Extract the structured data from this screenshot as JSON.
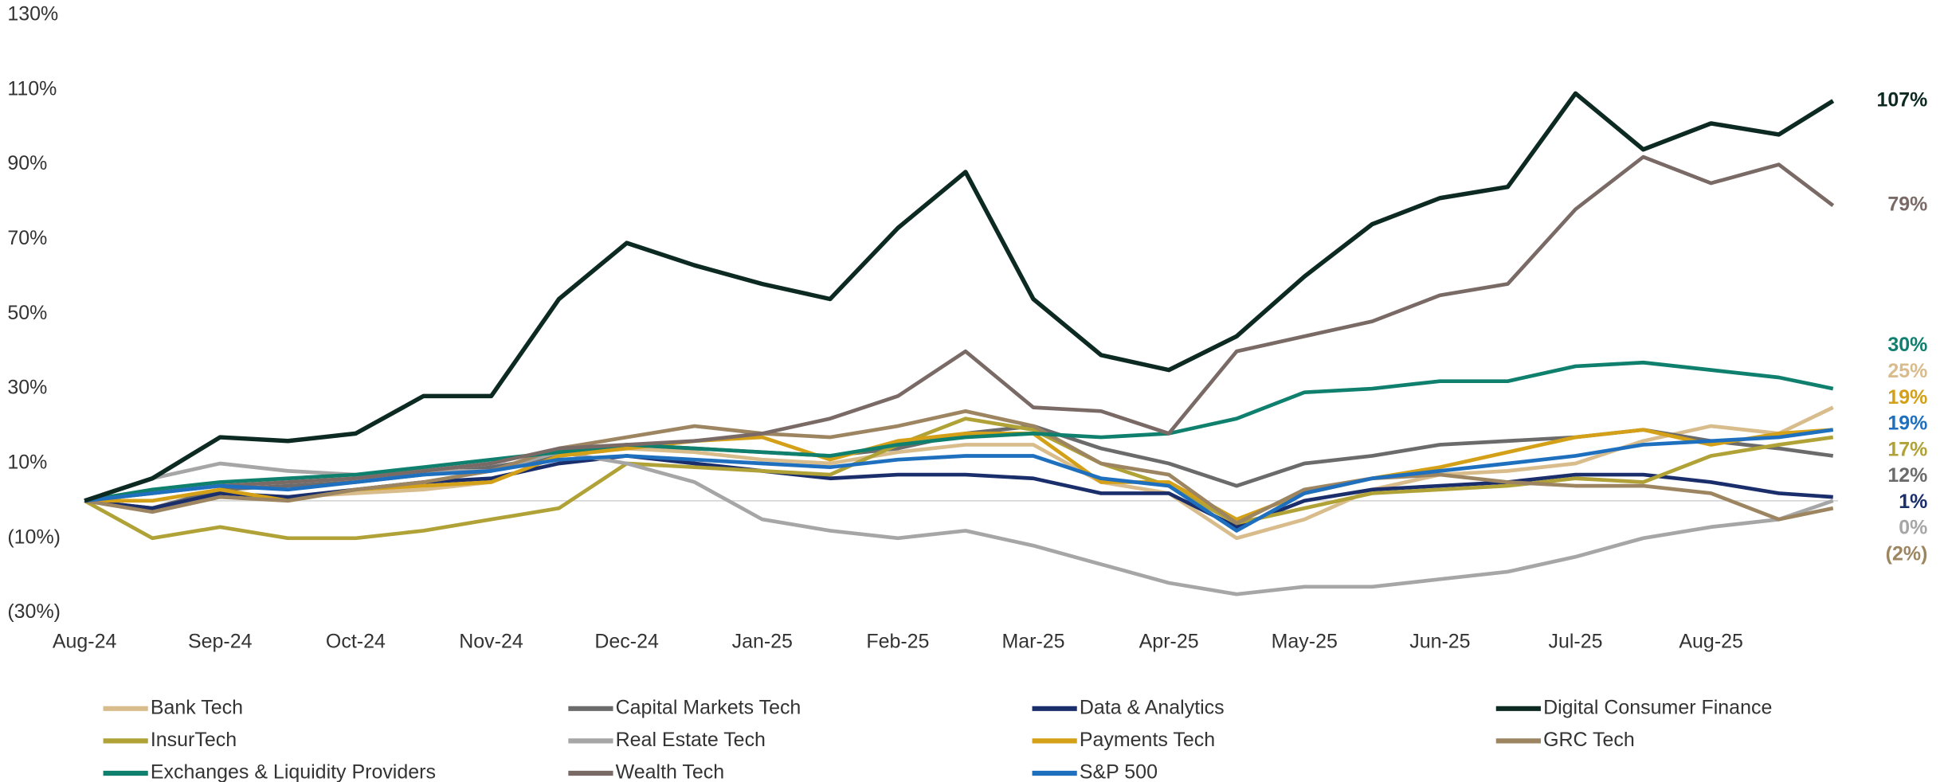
{
  "chart_data": {
    "type": "line",
    "x": [
      0,
      0.5,
      1,
      1.5,
      2,
      2.5,
      3,
      3.5,
      4,
      4.5,
      5,
      5.5,
      6,
      6.5,
      7,
      7.5,
      8,
      8.5,
      9,
      9.5,
      10,
      10.5,
      11,
      11.5,
      12,
      12.5,
      12.9
    ],
    "xlim": [
      0,
      12.9
    ],
    "xticks": [
      {
        "value": 0,
        "label": "Aug-24"
      },
      {
        "value": 1,
        "label": "Sep-24"
      },
      {
        "value": 2,
        "label": "Oct-24"
      },
      {
        "value": 3,
        "label": "Nov-24"
      },
      {
        "value": 4,
        "label": "Dec-24"
      },
      {
        "value": 5,
        "label": "Jan-25"
      },
      {
        "value": 6,
        "label": "Feb-25"
      },
      {
        "value": 7,
        "label": "Mar-25"
      },
      {
        "value": 8,
        "label": "Apr-25"
      },
      {
        "value": 9,
        "label": "May-25"
      },
      {
        "value": 10,
        "label": "Jun-25"
      },
      {
        "value": 11,
        "label": "Jul-25"
      },
      {
        "value": 12,
        "label": "Aug-25"
      }
    ],
    "ylim": [
      -30,
      130
    ],
    "yticks": [
      {
        "value": 130,
        "label": "130%"
      },
      {
        "value": 110,
        "label": "110%"
      },
      {
        "value": 90,
        "label": "90%"
      },
      {
        "value": 70,
        "label": "70%"
      },
      {
        "value": 50,
        "label": "50%"
      },
      {
        "value": 30,
        "label": "30%"
      },
      {
        "value": 10,
        "label": "10%"
      },
      {
        "value": -10,
        "label": "(10%)"
      },
      {
        "value": -30,
        "label": "(30%)"
      }
    ],
    "grid": false,
    "zero_line": true,
    "legend": "bottom",
    "series": [
      {
        "name": "Bank Tech",
        "color": "#d9bc8c",
        "values": [
          0,
          -2,
          2,
          1,
          2,
          3,
          5,
          12,
          14,
          13,
          11,
          10,
          13,
          15,
          15,
          5,
          2,
          -10,
          -5,
          3,
          7,
          8,
          10,
          16,
          20,
          18,
          25
        ],
        "value_labels": [
          null,
          null,
          null,
          null,
          null,
          null,
          null,
          null,
          null,
          null,
          null,
          null,
          null,
          null,
          null,
          null,
          null,
          null,
          null,
          null,
          null,
          null,
          null,
          null,
          null,
          null,
          "25%"
        ]
      },
      {
        "name": "Capital Markets Tech",
        "color": "#6b6b6b",
        "values": [
          0,
          -2,
          3,
          4,
          5,
          7,
          9,
          12,
          15,
          14,
          13,
          12,
          14,
          18,
          20,
          14,
          10,
          4,
          10,
          12,
          15,
          16,
          17,
          19,
          16,
          14,
          12
        ],
        "value_labels": [
          null,
          null,
          null,
          null,
          null,
          null,
          null,
          null,
          null,
          null,
          null,
          null,
          null,
          null,
          null,
          null,
          null,
          null,
          null,
          null,
          null,
          null,
          null,
          null,
          null,
          null,
          "12%"
        ]
      },
      {
        "name": "Data & Analytics",
        "color": "#1a2e6b",
        "values": [
          0,
          -2,
          2,
          1,
          3,
          5,
          6,
          10,
          12,
          10,
          8,
          6,
          7,
          7,
          6,
          2,
          2,
          -7,
          0,
          3,
          4,
          5,
          7,
          7,
          5,
          2,
          1
        ],
        "value_labels": [
          null,
          null,
          null,
          null,
          null,
          null,
          null,
          null,
          null,
          null,
          null,
          null,
          null,
          null,
          null,
          null,
          null,
          null,
          null,
          null,
          null,
          null,
          null,
          null,
          null,
          null,
          "1%"
        ]
      },
      {
        "name": "Digital Consumer Finance",
        "color": "#0d2a22",
        "values": [
          0,
          6,
          17,
          16,
          18,
          28,
          28,
          54,
          69,
          63,
          58,
          54,
          73,
          88,
          54,
          39,
          35,
          44,
          60,
          74,
          81,
          84,
          109,
          94,
          101,
          98,
          107
        ],
        "value_labels": [
          null,
          null,
          null,
          null,
          null,
          null,
          null,
          null,
          null,
          null,
          null,
          null,
          null,
          null,
          null,
          null,
          null,
          null,
          null,
          null,
          null,
          null,
          null,
          null,
          null,
          null,
          "107%"
        ]
      },
      {
        "name": "InsurTech",
        "color": "#b0a236",
        "values": [
          0,
          -10,
          -7,
          -10,
          -10,
          -8,
          -5,
          -2,
          10,
          9,
          8,
          7,
          15,
          22,
          19,
          10,
          4,
          -6,
          -2,
          2,
          3,
          4,
          6,
          5,
          12,
          15,
          17
        ],
        "value_labels": [
          null,
          null,
          null,
          null,
          null,
          null,
          null,
          null,
          null,
          null,
          null,
          null,
          null,
          null,
          null,
          null,
          null,
          null,
          null,
          null,
          null,
          null,
          null,
          null,
          null,
          null,
          "17%"
        ]
      },
      {
        "name": "Real Estate Tech",
        "color": "#a6a6a6",
        "values": [
          0,
          6,
          10,
          8,
          7,
          8,
          8,
          13,
          10,
          5,
          -5,
          -8,
          -10,
          -8,
          -12,
          -17,
          -22,
          -25,
          -23,
          -23,
          -21,
          -19,
          -15,
          -10,
          -7,
          -5,
          0
        ],
        "value_labels": [
          null,
          null,
          null,
          null,
          null,
          null,
          null,
          null,
          null,
          null,
          null,
          null,
          null,
          null,
          null,
          null,
          null,
          null,
          null,
          null,
          null,
          null,
          null,
          null,
          null,
          null,
          "0%"
        ]
      },
      {
        "name": "Payments Tech",
        "color": "#d4a017",
        "values": [
          0,
          0,
          3,
          0,
          3,
          4,
          5,
          12,
          14,
          16,
          17,
          11,
          16,
          18,
          18,
          5,
          5,
          -5,
          2,
          6,
          9,
          13,
          17,
          19,
          15,
          18,
          19
        ],
        "value_labels": [
          null,
          null,
          null,
          null,
          null,
          null,
          null,
          null,
          null,
          null,
          null,
          null,
          null,
          null,
          null,
          null,
          null,
          null,
          null,
          null,
          null,
          null,
          null,
          null,
          null,
          null,
          "19%"
        ]
      },
      {
        "name": "GRC Tech",
        "color": "#9c8560",
        "values": [
          0,
          -3,
          1,
          0,
          3,
          5,
          8,
          14,
          17,
          20,
          18,
          17,
          20,
          24,
          20,
          10,
          7,
          -6,
          3,
          6,
          7,
          5,
          4,
          4,
          2,
          -5,
          -2
        ],
        "value_labels": [
          null,
          null,
          null,
          null,
          null,
          null,
          null,
          null,
          null,
          null,
          null,
          null,
          null,
          null,
          null,
          null,
          null,
          null,
          null,
          null,
          null,
          null,
          null,
          null,
          null,
          null,
          "(2%)"
        ]
      },
      {
        "name": "Exchanges & Liquidity Providers",
        "color": "#0f7f6e",
        "values": [
          0,
          3,
          5,
          6,
          7,
          9,
          11,
          13,
          15,
          14,
          13,
          12,
          15,
          17,
          18,
          17,
          18,
          22,
          29,
          30,
          32,
          32,
          36,
          37,
          35,
          33,
          30
        ],
        "value_labels": [
          null,
          null,
          null,
          null,
          null,
          null,
          null,
          null,
          null,
          null,
          null,
          null,
          null,
          null,
          null,
          null,
          null,
          null,
          null,
          null,
          null,
          null,
          null,
          null,
          null,
          null,
          "30%"
        ]
      },
      {
        "name": "Wealth Tech",
        "color": "#7a6a66",
        "values": [
          0,
          2,
          4,
          5,
          6,
          8,
          10,
          14,
          15,
          16,
          18,
          22,
          28,
          40,
          25,
          24,
          18,
          40,
          44,
          48,
          55,
          58,
          78,
          92,
          85,
          90,
          79
        ],
        "value_labels": [
          null,
          null,
          null,
          null,
          null,
          null,
          null,
          null,
          null,
          null,
          null,
          null,
          null,
          null,
          null,
          null,
          null,
          null,
          null,
          null,
          null,
          null,
          null,
          null,
          null,
          null,
          "79%"
        ]
      },
      {
        "name": "S&P 500",
        "color": "#1f6fbf",
        "values": [
          0,
          2,
          4,
          3,
          5,
          7,
          8,
          11,
          12,
          11,
          10,
          9,
          11,
          12,
          12,
          6,
          4,
          -8,
          2,
          6,
          8,
          10,
          12,
          15,
          16,
          17,
          19
        ],
        "value_labels": [
          null,
          null,
          null,
          null,
          null,
          null,
          null,
          null,
          null,
          null,
          null,
          null,
          null,
          null,
          null,
          null,
          null,
          null,
          null,
          null,
          null,
          null,
          null,
          null,
          null,
          null,
          "19%"
        ]
      }
    ]
  }
}
